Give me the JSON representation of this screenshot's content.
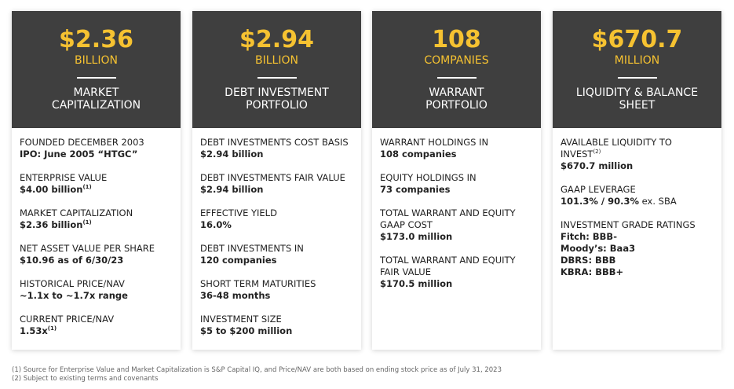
{
  "cards": [
    {
      "amount": "$2.36",
      "unit": "BILLION",
      "title": [
        "MARKET",
        "CAPITALIZATION"
      ],
      "items": [
        {
          "label": [
            "FOUNDED DECEMBER 2003"
          ],
          "values": [
            "IPO: June 2005 “HTGC”"
          ]
        },
        {
          "label": [
            "ENTERPRISE VALUE"
          ],
          "values": [
            "$4.00 billion"
          ],
          "value_sup": "(1)"
        },
        {
          "label": [
            "MARKET CAPITALIZATION"
          ],
          "values": [
            "$2.36 billion"
          ],
          "value_sup": "(1)"
        },
        {
          "label": [
            "NET ASSET VALUE PER SHARE"
          ],
          "values": [
            "$10.96 as of 6/30/23"
          ]
        },
        {
          "label": [
            "HISTORICAL PRICE/NAV"
          ],
          "values": [
            "~1.1x to ~1.7x range"
          ]
        },
        {
          "label": [
            "CURRENT PRICE/NAV"
          ],
          "values": [
            "1.53x"
          ],
          "value_sup": "(1)"
        }
      ]
    },
    {
      "amount": "$2.94",
      "unit": "BILLION",
      "title": [
        "DEBT INVESTMENT",
        "PORTFOLIO"
      ],
      "items": [
        {
          "label": [
            "DEBT INVESTMENTS COST BASIS"
          ],
          "values": [
            "$2.94 billion"
          ]
        },
        {
          "label": [
            "DEBT INVESTMENTS FAIR VALUE"
          ],
          "values": [
            "$2.94 billion"
          ]
        },
        {
          "label": [
            "EFFECTIVE YIELD"
          ],
          "values": [
            "16.0%"
          ]
        },
        {
          "label": [
            "DEBT INVESTMENTS IN"
          ],
          "values": [
            "120 companies"
          ]
        },
        {
          "label": [
            "SHORT TERM MATURITIES"
          ],
          "values": [
            "36-48 months"
          ]
        },
        {
          "label": [
            "INVESTMENT SIZE"
          ],
          "values": [
            "$5 to $200 million"
          ]
        }
      ]
    },
    {
      "amount": "108",
      "unit": "COMPANIES",
      "title": [
        "WARRANT",
        "PORTFOLIO"
      ],
      "items": [
        {
          "label": [
            "WARRANT HOLDINGS IN"
          ],
          "values": [
            "108 companies"
          ]
        },
        {
          "label": [
            "EQUITY HOLDINGS IN"
          ],
          "values": [
            "73 companies"
          ]
        },
        {
          "label": [
            "TOTAL WARRANT AND EQUITY",
            "GAAP COST"
          ],
          "values": [
            "$173.0 million"
          ]
        },
        {
          "label": [
            "TOTAL WARRANT AND EQUITY",
            "FAIR VALUE"
          ],
          "values": [
            "$170.5 million"
          ]
        }
      ]
    },
    {
      "amount": "$670.7",
      "unit": "MILLION",
      "title": [
        "LIQUIDITY & BALANCE",
        "SHEET"
      ],
      "items": [
        {
          "label": [
            "AVAILABLE LIQUIDITY TO",
            "INVEST"
          ],
          "label_sup": "(2)",
          "values": [
            "$670.7 million"
          ]
        },
        {
          "label": [
            "GAAP LEVERAGE"
          ],
          "values": [
            "101.3% / 90.3%"
          ],
          "value_note": " ex. SBA"
        },
        {
          "label": [
            "INVESTMENT GRADE RATINGS"
          ],
          "values": [
            "Fitch: BBB-",
            "Moody’s: Baa3",
            "DBRS: BBB",
            "KBRA: BBB+"
          ]
        }
      ]
    }
  ],
  "footnotes": [
    "(1) Source for Enterprise Value and Market Capitalization is S&P Capital IQ, and Price/NAV are both based on ending stock price as of July 31, 2023",
    "(2) Subject to existing terms and covenants"
  ]
}
